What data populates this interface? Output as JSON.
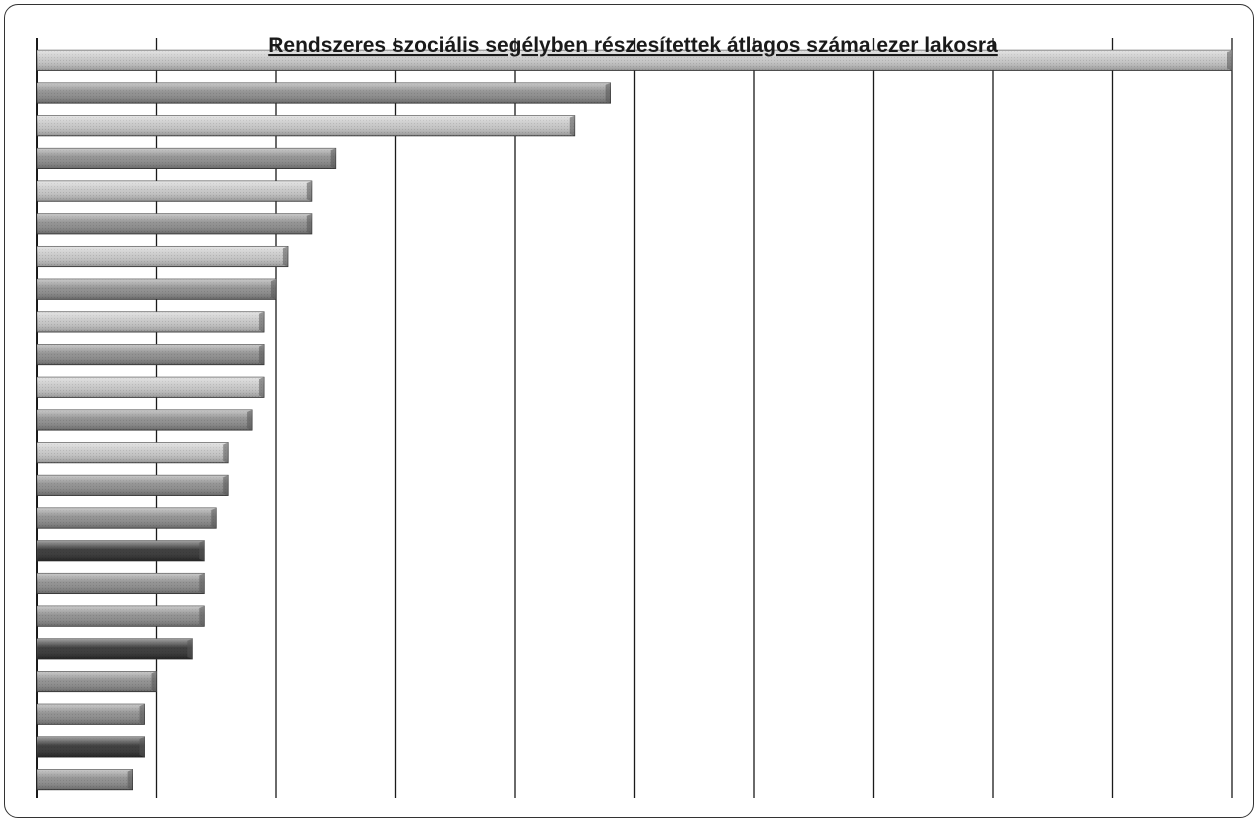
{
  "chart_data": {
    "type": "bar",
    "orientation": "horizontal",
    "title": "Rendszeres szociális segélyben részesítettek átlagos száma ezer lakosra",
    "xlim": [
      0,
      100
    ],
    "grid": true,
    "legend": "none",
    "bar_order": "descending",
    "values": [
      100,
      48,
      45,
      25,
      23,
      23,
      21,
      20,
      19,
      19,
      19,
      18,
      16,
      16,
      15,
      14,
      14,
      14,
      13,
      10,
      9,
      9,
      8
    ],
    "colors": {
      "bar_light": "#c4c4c4",
      "bar_mid": "#8a8a8a",
      "bar_dark": "#2e2e2e",
      "grid": "#1a1a1a"
    }
  }
}
